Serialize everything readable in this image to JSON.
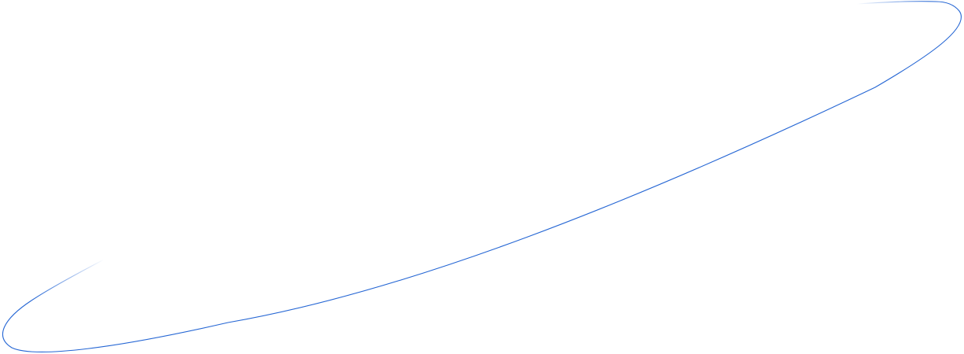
{
  "decoration": {
    "kind": "swoosh-line",
    "stroke_color": "#2566d4",
    "fade_color": "#ffffff"
  }
}
